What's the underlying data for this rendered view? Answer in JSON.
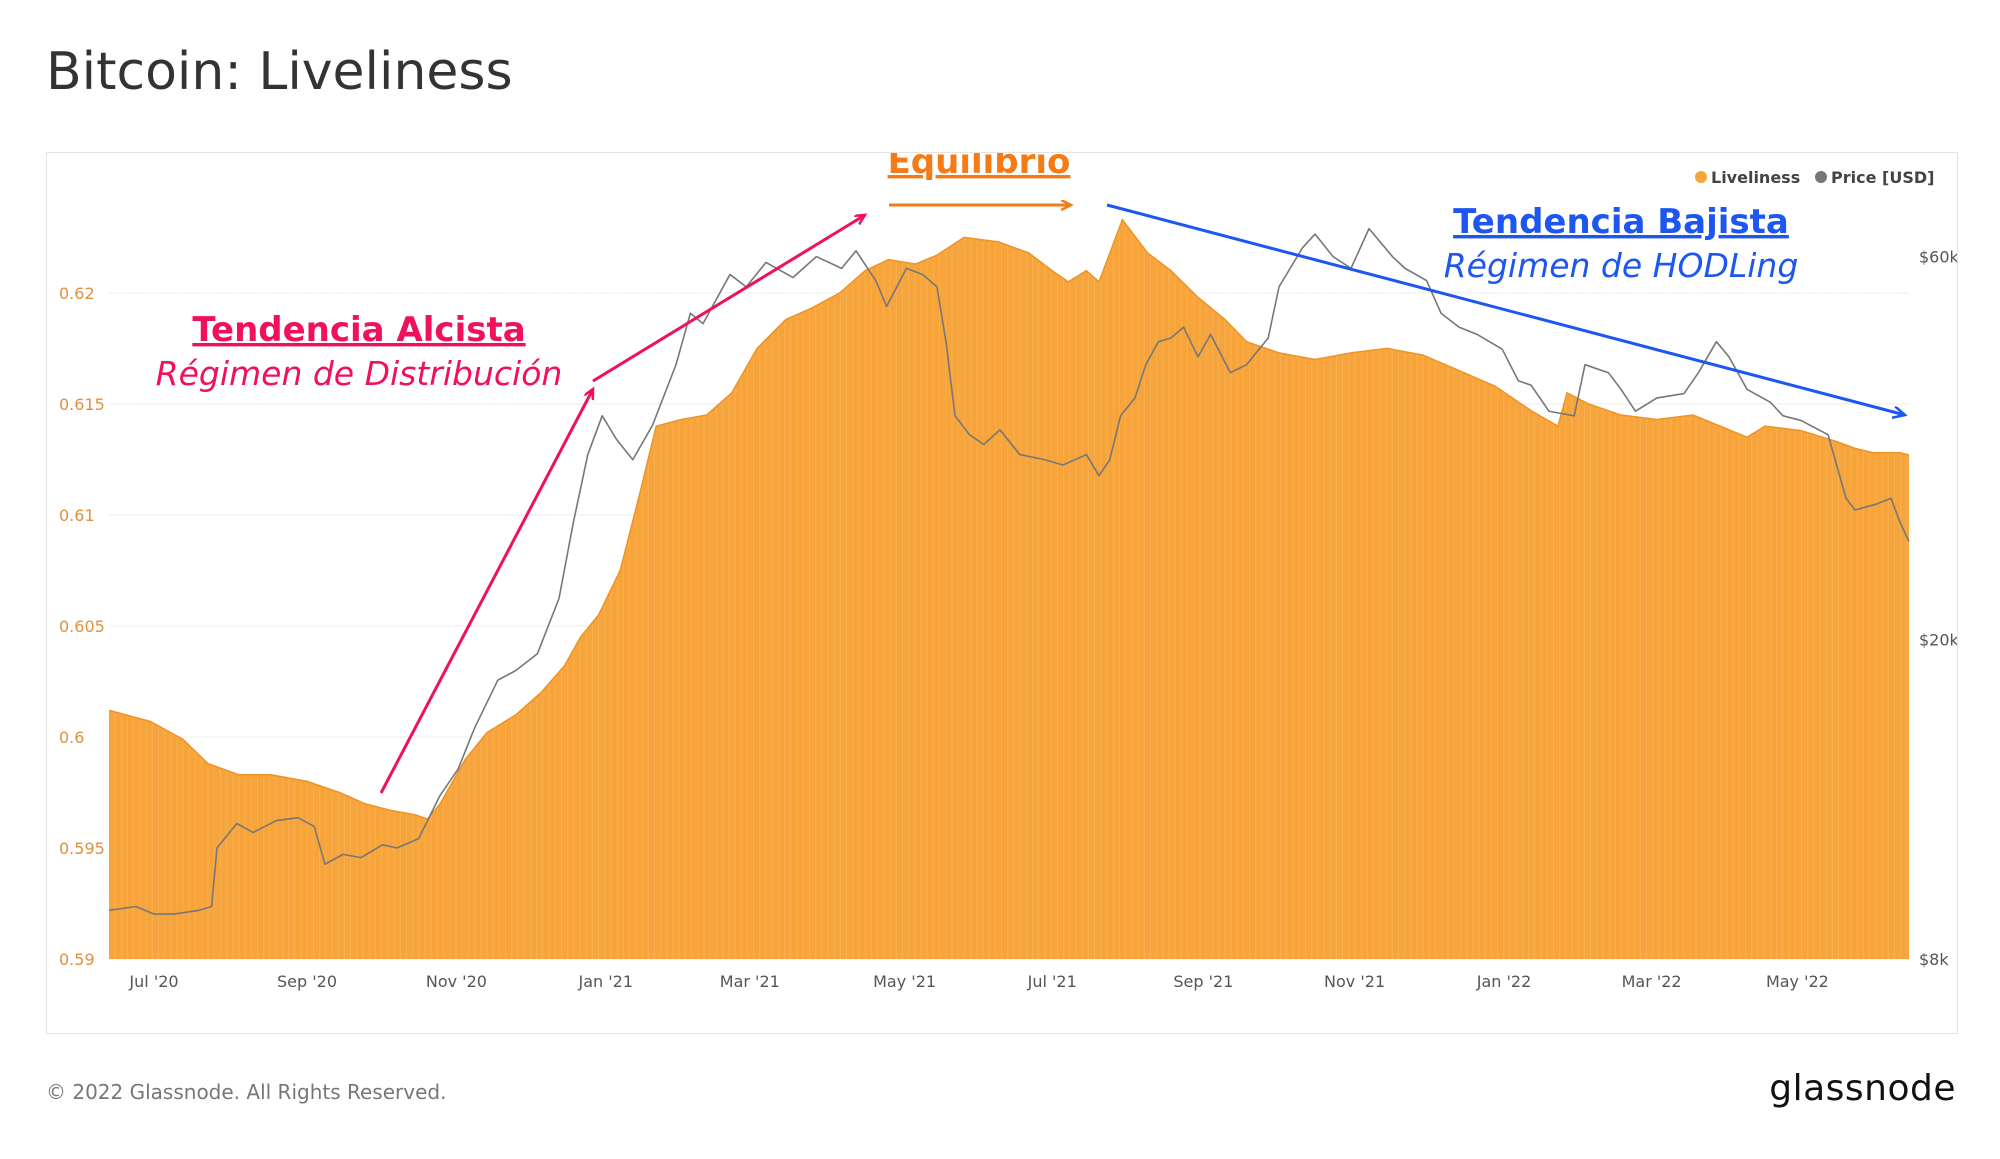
{
  "title": "Bitcoin: Liveliness",
  "footer": "© 2022 Glassnode. All Rights Reserved.",
  "brand": "glassnode",
  "watermark": "glassnode",
  "colors": {
    "liveliness": "#f7a43a",
    "price": "#777777",
    "alcista": "#f0115a",
    "equilibrio": "#f47b16",
    "bajista": "#1d56f0"
  },
  "chart_data": {
    "type": "area",
    "legend": {
      "placement": "top-right",
      "items": [
        {
          "label": "Liveliness",
          "color": "#f7a43a"
        },
        {
          "label": "Price [USD]",
          "color": "#777777"
        }
      ]
    },
    "x_ticks": [
      "Jul '20",
      "Sep '20",
      "Nov '20",
      "Jan '21",
      "Mar '21",
      "May '21",
      "Jul '21",
      "Sep '21",
      "Nov '21",
      "Jan '22",
      "Mar '22",
      "May '22"
    ],
    "y_left": {
      "label": "",
      "lim": [
        0.59,
        0.6245
      ],
      "ticks": [
        "0.59",
        "0.595",
        "0.6",
        "0.605",
        "0.61",
        "0.615",
        "0.62"
      ]
    },
    "y_right": {
      "label": "",
      "scale": "log",
      "lim": [
        8000,
        72000
      ],
      "ticks": [
        {
          "label": "$8k",
          "value": 8000
        },
        {
          "label": "$20k",
          "value": 20000
        },
        {
          "label": "$60k",
          "value": 60000
        }
      ]
    },
    "series": [
      {
        "name": "Liveliness",
        "axis": "left",
        "points": [
          [
            0.0,
            0.6012
          ],
          [
            2.3,
            0.6007
          ],
          [
            4.1,
            0.5999
          ],
          [
            5.5,
            0.5988
          ],
          [
            7.2,
            0.5983
          ],
          [
            9.0,
            0.5983
          ],
          [
            11.0,
            0.598
          ],
          [
            12.8,
            0.5975
          ],
          [
            14.2,
            0.597
          ],
          [
            15.6,
            0.5967
          ],
          [
            17.0,
            0.5965
          ],
          [
            17.7,
            0.5963
          ],
          [
            18.4,
            0.597
          ],
          [
            19.8,
            0.599
          ],
          [
            21.0,
            0.6002
          ],
          [
            22.6,
            0.601
          ],
          [
            24.0,
            0.602
          ],
          [
            25.3,
            0.6032
          ],
          [
            26.2,
            0.6045
          ],
          [
            27.2,
            0.6055
          ],
          [
            28.4,
            0.6075
          ],
          [
            29.5,
            0.611
          ],
          [
            30.4,
            0.614
          ],
          [
            31.8,
            0.6143
          ],
          [
            33.2,
            0.6145
          ],
          [
            34.6,
            0.6155
          ],
          [
            36.0,
            0.6175
          ],
          [
            37.6,
            0.6188
          ],
          [
            39.0,
            0.6193
          ],
          [
            40.6,
            0.62
          ],
          [
            42.0,
            0.621
          ],
          [
            43.3,
            0.6215
          ],
          [
            44.8,
            0.6213
          ],
          [
            46.0,
            0.6217
          ],
          [
            47.5,
            0.6225
          ],
          [
            49.4,
            0.6223
          ],
          [
            51.1,
            0.6218
          ],
          [
            52.4,
            0.621
          ],
          [
            53.3,
            0.6205
          ],
          [
            54.3,
            0.621
          ],
          [
            55.0,
            0.6205
          ],
          [
            56.3,
            0.6233
          ],
          [
            57.7,
            0.6218
          ],
          [
            59.0,
            0.621
          ],
          [
            60.5,
            0.6198
          ],
          [
            62.0,
            0.6188
          ],
          [
            63.2,
            0.6178
          ],
          [
            65.0,
            0.6173
          ],
          [
            67.0,
            0.617
          ],
          [
            69.0,
            0.6173
          ],
          [
            71.0,
            0.6175
          ],
          [
            73.0,
            0.6172
          ],
          [
            75.0,
            0.6165
          ],
          [
            77.0,
            0.6158
          ],
          [
            79.0,
            0.6147
          ],
          [
            80.5,
            0.614
          ],
          [
            81.0,
            0.6155
          ],
          [
            82.2,
            0.615
          ],
          [
            84.0,
            0.6145
          ],
          [
            86.0,
            0.6143
          ],
          [
            88.0,
            0.6145
          ],
          [
            89.5,
            0.614
          ],
          [
            91.0,
            0.6135
          ],
          [
            92.0,
            0.614
          ],
          [
            94.0,
            0.6138
          ],
          [
            96.0,
            0.6133
          ],
          [
            97.0,
            0.613
          ],
          [
            98.0,
            0.6128
          ],
          [
            99.5,
            0.6128
          ],
          [
            100.0,
            0.6127
          ]
        ]
      },
      {
        "name": "Price [USD]",
        "axis": "right",
        "points": [
          [
            0.0,
            9200
          ],
          [
            1.5,
            9300
          ],
          [
            2.5,
            9100
          ],
          [
            3.6,
            9100
          ],
          [
            5.0,
            9200
          ],
          [
            5.7,
            9300
          ],
          [
            6.0,
            11000
          ],
          [
            7.1,
            11800
          ],
          [
            8.0,
            11500
          ],
          [
            9.3,
            11900
          ],
          [
            10.5,
            12000
          ],
          [
            11.4,
            11700
          ],
          [
            12.0,
            10500
          ],
          [
            13.0,
            10800
          ],
          [
            14.0,
            10700
          ],
          [
            15.2,
            11100
          ],
          [
            16.0,
            11000
          ],
          [
            17.2,
            11300
          ],
          [
            18.4,
            12800
          ],
          [
            19.4,
            13800
          ],
          [
            20.3,
            15500
          ],
          [
            21.6,
            17800
          ],
          [
            22.6,
            18300
          ],
          [
            23.8,
            19200
          ],
          [
            25.0,
            22500
          ],
          [
            25.8,
            28000
          ],
          [
            26.6,
            34000
          ],
          [
            27.4,
            38000
          ],
          [
            28.2,
            35500
          ],
          [
            29.1,
            33500
          ],
          [
            30.2,
            37000
          ],
          [
            31.5,
            44000
          ],
          [
            32.3,
            51000
          ],
          [
            33.0,
            49500
          ],
          [
            34.5,
            57000
          ],
          [
            35.4,
            55000
          ],
          [
            36.5,
            59000
          ],
          [
            38.0,
            56500
          ],
          [
            39.3,
            60000
          ],
          [
            40.7,
            58000
          ],
          [
            41.5,
            61000
          ],
          [
            42.6,
            56000
          ],
          [
            43.2,
            52000
          ],
          [
            44.3,
            58000
          ],
          [
            45.2,
            57000
          ],
          [
            46.0,
            55000
          ],
          [
            46.5,
            47000
          ],
          [
            47.0,
            38000
          ],
          [
            47.8,
            36000
          ],
          [
            48.6,
            35000
          ],
          [
            49.5,
            36500
          ],
          [
            50.6,
            34000
          ],
          [
            52.0,
            33500
          ],
          [
            53.0,
            33000
          ],
          [
            54.3,
            34000
          ],
          [
            55.0,
            32000
          ],
          [
            55.6,
            33500
          ],
          [
            56.2,
            38000
          ],
          [
            57.0,
            40000
          ],
          [
            57.6,
            44000
          ],
          [
            58.3,
            47000
          ],
          [
            59.0,
            47500
          ],
          [
            59.7,
            49000
          ],
          [
            60.5,
            45000
          ],
          [
            61.2,
            48000
          ],
          [
            62.3,
            43000
          ],
          [
            63.2,
            44000
          ],
          [
            64.4,
            47500
          ],
          [
            65.0,
            55000
          ],
          [
            66.3,
            61500
          ],
          [
            67.0,
            64000
          ],
          [
            68.0,
            60000
          ],
          [
            69.0,
            58000
          ],
          [
            70.0,
            65000
          ],
          [
            71.3,
            60000
          ],
          [
            72.0,
            58000
          ],
          [
            73.2,
            56000
          ],
          [
            74.0,
            51000
          ],
          [
            75.0,
            49000
          ],
          [
            76.0,
            48000
          ],
          [
            77.4,
            46000
          ],
          [
            78.3,
            42000
          ],
          [
            79.0,
            41500
          ],
          [
            80.0,
            38500
          ],
          [
            81.4,
            38000
          ],
          [
            82.0,
            44000
          ],
          [
            83.3,
            43000
          ],
          [
            84.0,
            41000
          ],
          [
            84.8,
            38500
          ],
          [
            86.0,
            40000
          ],
          [
            87.5,
            40500
          ],
          [
            88.3,
            43000
          ],
          [
            89.3,
            47000
          ],
          [
            90.0,
            45000
          ],
          [
            91.0,
            41000
          ],
          [
            92.3,
            39500
          ],
          [
            93.0,
            38000
          ],
          [
            94.0,
            37500
          ],
          [
            95.5,
            36000
          ],
          [
            96.5,
            30000
          ],
          [
            97.0,
            29000
          ],
          [
            98.2,
            29500
          ],
          [
            99.0,
            30000
          ],
          [
            99.5,
            28000
          ],
          [
            100.0,
            26500
          ]
        ]
      }
    ],
    "annotations": [
      {
        "title": "Tendencia Alcista",
        "subtitle": "Régimen de Distribución",
        "color": "#f0115a"
      },
      {
        "title": "Equilibrio",
        "subtitle": "",
        "color": "#f47b16"
      },
      {
        "title": "Tendencia Bajista",
        "subtitle": "Régimen de HODLing",
        "color": "#1d56f0"
      }
    ]
  }
}
